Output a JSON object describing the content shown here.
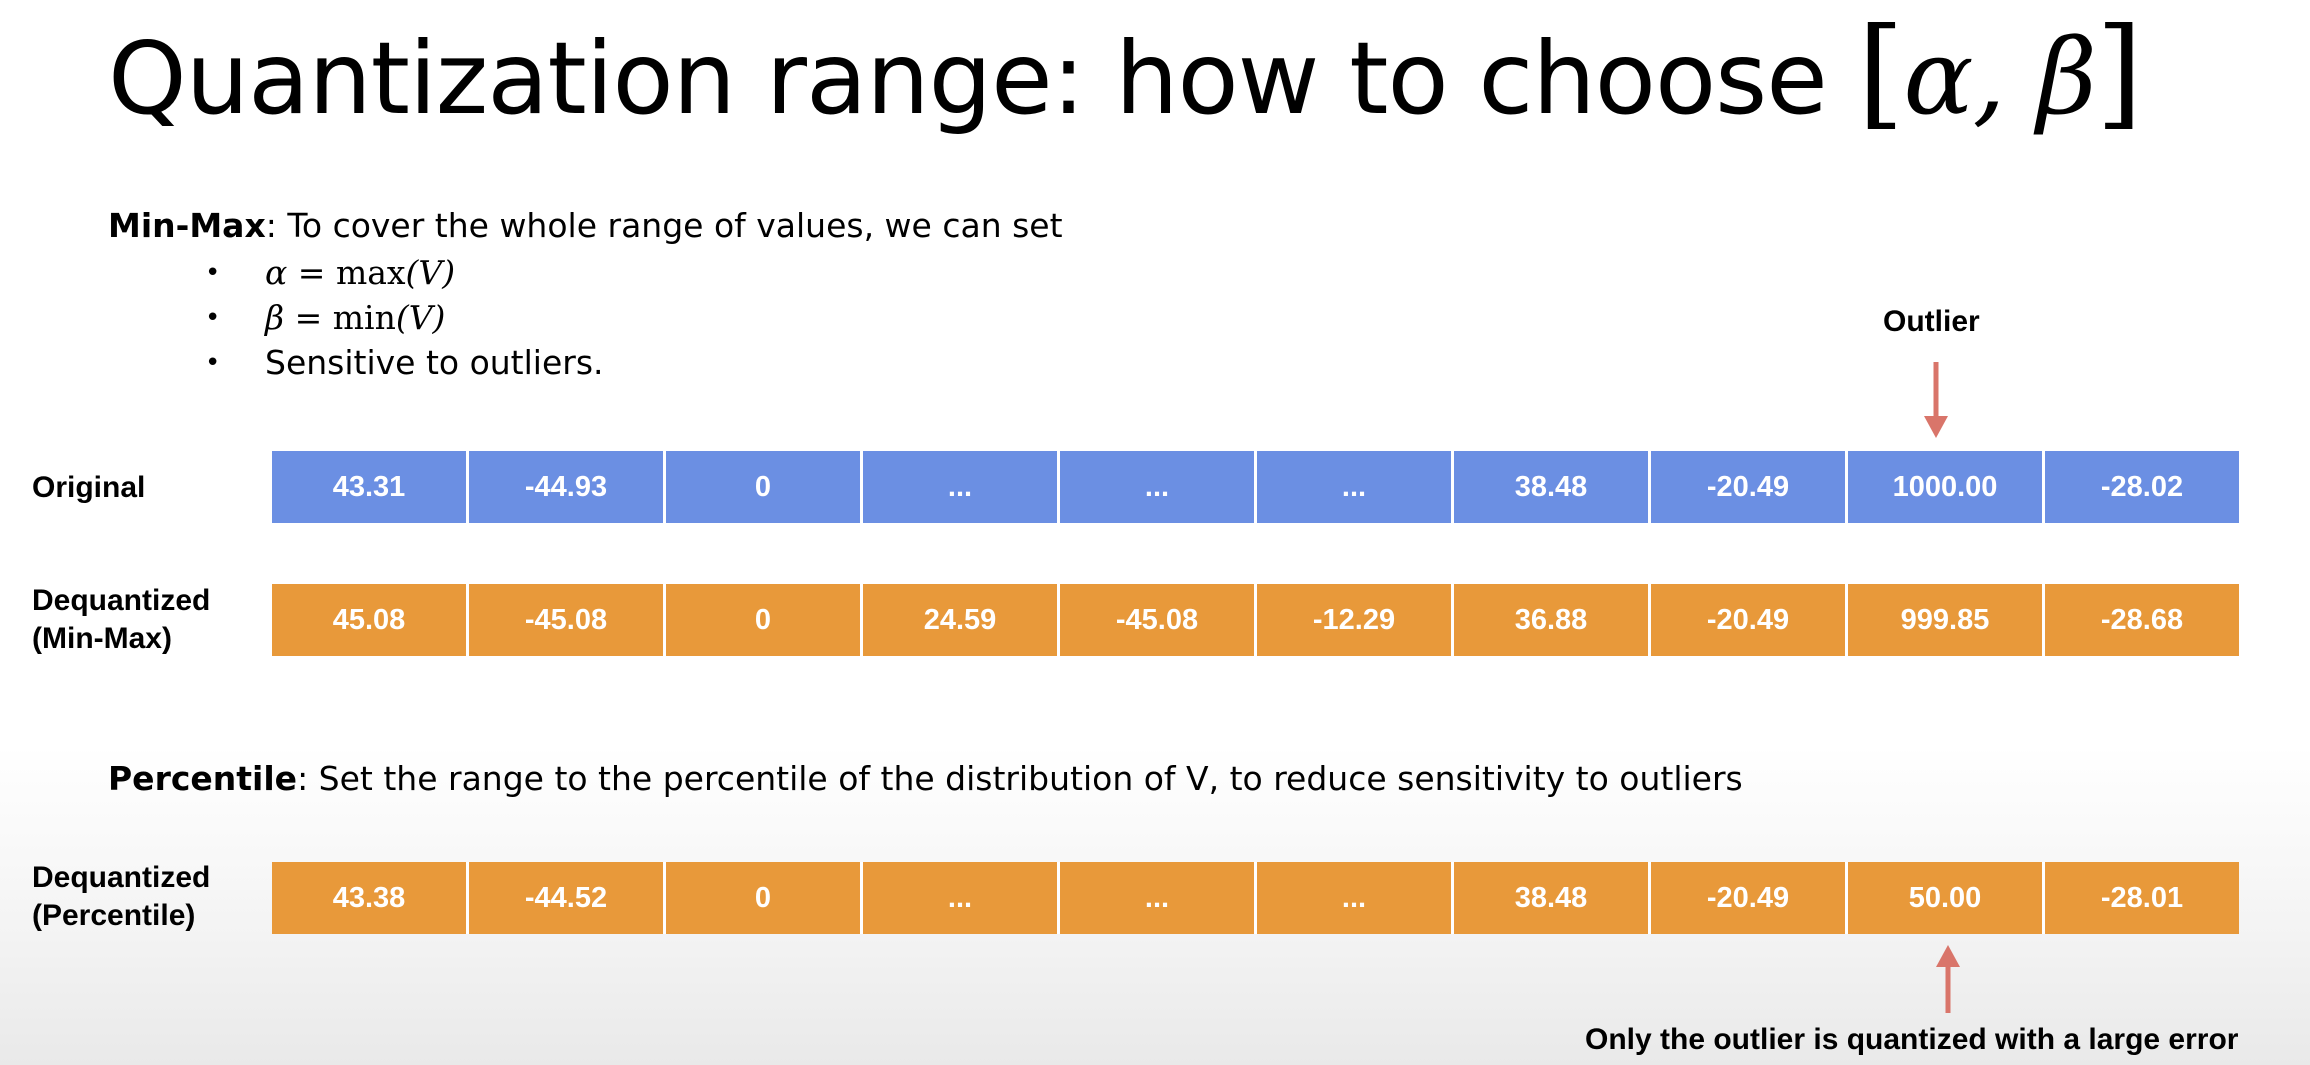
{
  "slide": {
    "title_text": "Quantization range: how to choose ",
    "title_math": "α, β",
    "title_bracket_left": "[",
    "title_bracket_right": "]",
    "minmax": {
      "term": "Min-Max",
      "text": ": To cover the whole range of values, we can set",
      "bullets": [
        {
          "lhs": "α",
          "eq": " = ",
          "fn": "max",
          "arg": "(V)"
        },
        {
          "lhs": "β",
          "eq": " = ",
          "fn": "min",
          "arg": "(V)"
        }
      ],
      "bullet3": "Sensitive to outliers.",
      "bullet_glyph": "•"
    },
    "percentile": {
      "term": "Percentile",
      "text": ": Set the range to the percentile of the distribution of V, to reduce sensitivity to outliers"
    },
    "rows": {
      "original": {
        "label": "Original",
        "values": [
          "43.31",
          "-44.93",
          "0",
          "...",
          "...",
          "...",
          "38.48",
          "-20.49",
          "1000.00",
          "-28.02"
        ]
      },
      "dequant_minmax": {
        "label_line1": "Dequantized",
        "label_line2": "(Min-Max)",
        "values": [
          "45.08",
          "-45.08",
          "0",
          "24.59",
          "-45.08",
          "-12.29",
          "36.88",
          "-20.49",
          "999.85",
          "-28.68"
        ]
      },
      "dequant_percentile": {
        "label_line1": "Dequantized",
        "label_line2": "(Percentile)",
        "values": [
          "43.38",
          "-44.52",
          "0",
          "...",
          "...",
          "...",
          "38.48",
          "-20.49",
          "50.00",
          "-28.01"
        ]
      }
    },
    "callouts": {
      "outlier": "Outlier",
      "large_error": "Only the outlier is quantized with a large error"
    },
    "colors": {
      "blue_cell": "#6b8fe3",
      "orange_cell": "#e8993a",
      "arrow": "#d9756a"
    }
  }
}
